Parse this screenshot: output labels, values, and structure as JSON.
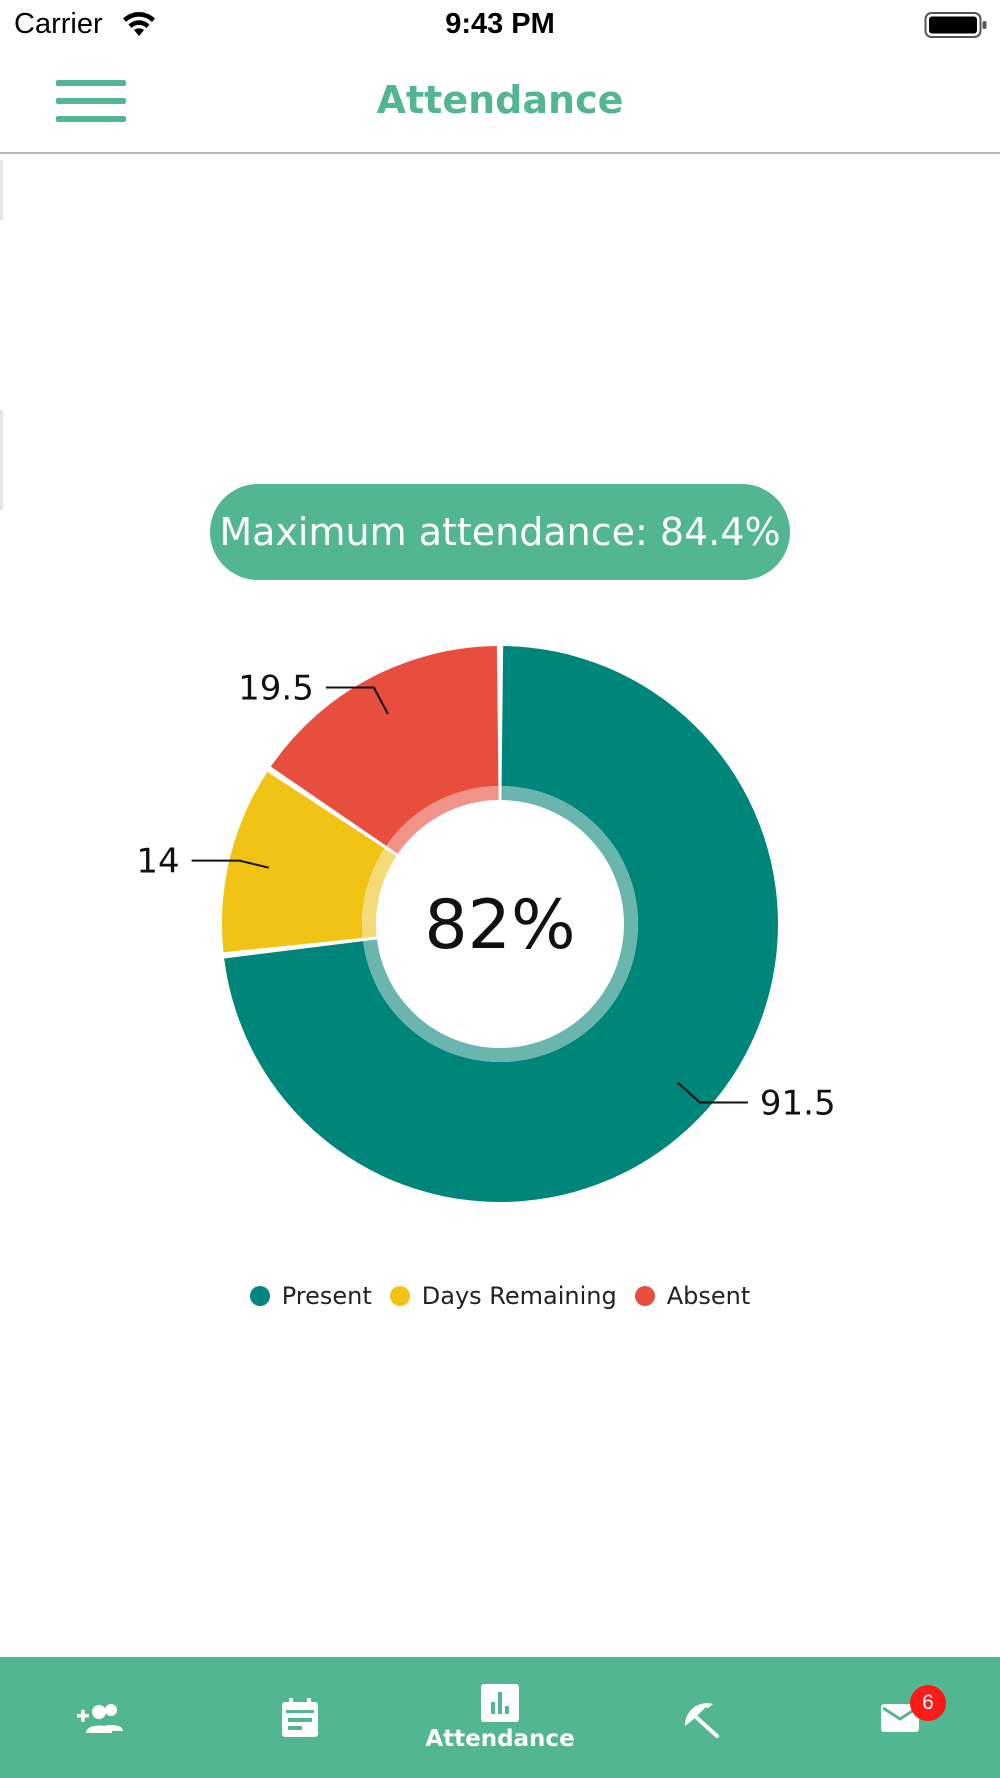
{
  "status_bar": {
    "carrier": "Carrier",
    "time": "9:43 PM"
  },
  "header": {
    "title": "Attendance"
  },
  "summary": {
    "max_attendance_text": "Maximum attendance: 84.4%"
  },
  "chart_data": {
    "type": "pie",
    "center_label": "82%",
    "slices": [
      {
        "name": "Present",
        "value": 91.5,
        "label": "91.5",
        "color": "#00857a",
        "inner_color": "#6ab5ad"
      },
      {
        "name": "Days Remaining",
        "value": 14,
        "label": "14",
        "color": "#f0c314",
        "inner_color": "#f5da78"
      },
      {
        "name": "Absent",
        "value": 19.5,
        "label": "19.5",
        "color": "#e84e3e",
        "inner_color": "#f29389"
      }
    ],
    "legend": [
      "Present",
      "Days Remaining",
      "Absent"
    ],
    "legend_placement": "bottom-center"
  },
  "tab_bar": {
    "tabs": [
      {
        "icon": "add-people-icon",
        "label": ""
      },
      {
        "icon": "calendar-icon",
        "label": ""
      },
      {
        "icon": "bar-chart-icon",
        "label": "Attendance"
      },
      {
        "icon": "beach-umbrella-icon",
        "label": ""
      },
      {
        "icon": "mail-icon",
        "label": "",
        "badge": "6"
      }
    ],
    "active_index": 2
  },
  "colors": {
    "accent": "#52b690",
    "present": "#00857a",
    "days_remaining": "#f0c314",
    "absent": "#e84e3e",
    "badge": "#ff1a1a"
  }
}
